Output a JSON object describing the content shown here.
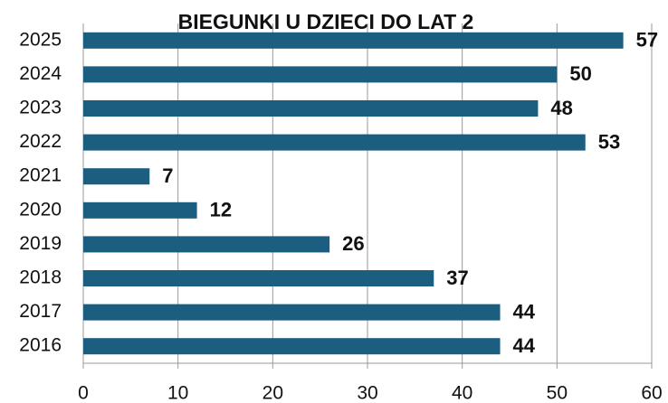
{
  "chart_data": {
    "type": "bar",
    "orientation": "horizontal",
    "title": "BIEGUNKI U DZIECI DO LAT 2",
    "categories": [
      "2025",
      "2024",
      "2023",
      "2022",
      "2021",
      "2020",
      "2019",
      "2018",
      "2017",
      "2016"
    ],
    "values": [
      57,
      50,
      48,
      53,
      7,
      12,
      26,
      37,
      44,
      44
    ],
    "color": "#1b5e80",
    "xlim": [
      0,
      60
    ],
    "xticks": [
      0,
      10,
      20,
      30,
      40,
      50,
      60
    ],
    "grid": true
  }
}
